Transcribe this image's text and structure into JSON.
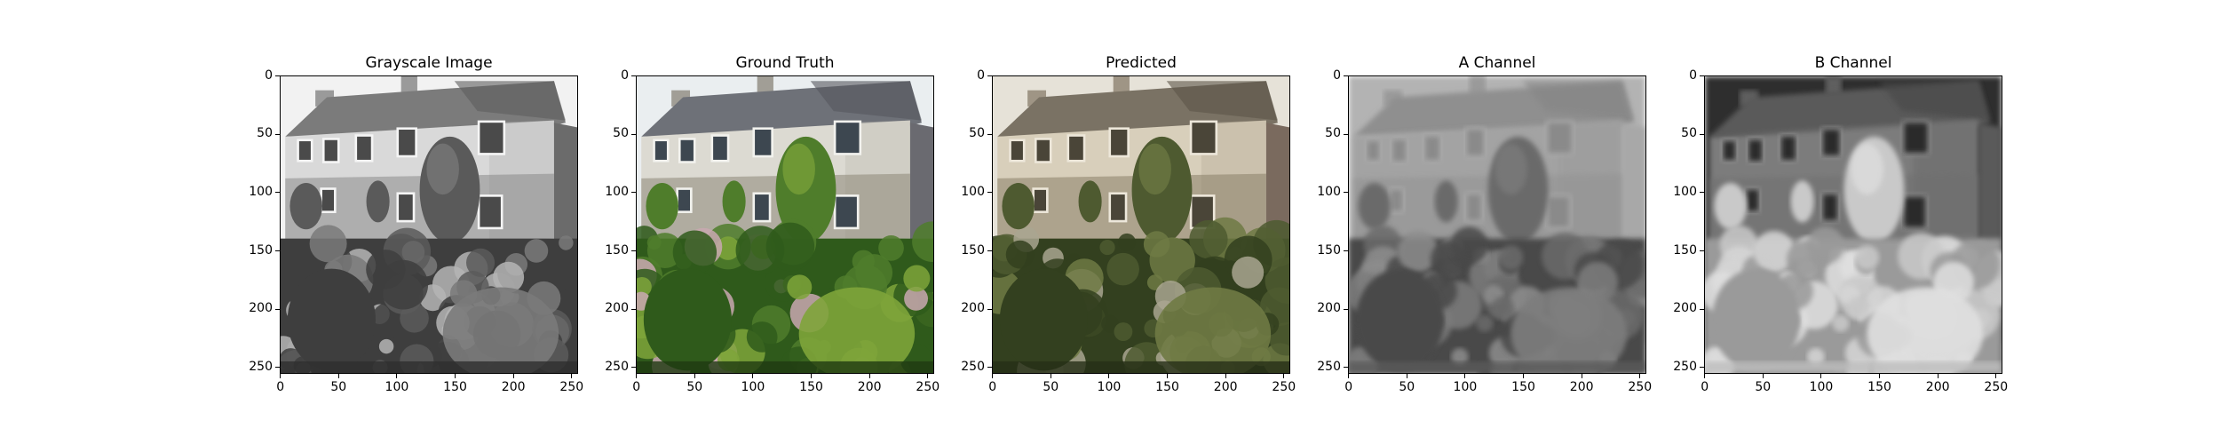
{
  "figure": {
    "panels": [
      {
        "title": "Grayscale Image",
        "style": "gray"
      },
      {
        "title": "Ground Truth",
        "style": "color"
      },
      {
        "title": "Predicted",
        "style": "predicted"
      },
      {
        "title": "A Channel",
        "style": "achannel"
      },
      {
        "title": "B Channel",
        "style": "bchannel"
      }
    ],
    "x_ticks": [
      "0",
      "50",
      "100",
      "150",
      "200",
      "250"
    ],
    "y_ticks": [
      "0",
      "50",
      "100",
      "150",
      "200",
      "250"
    ]
  }
}
